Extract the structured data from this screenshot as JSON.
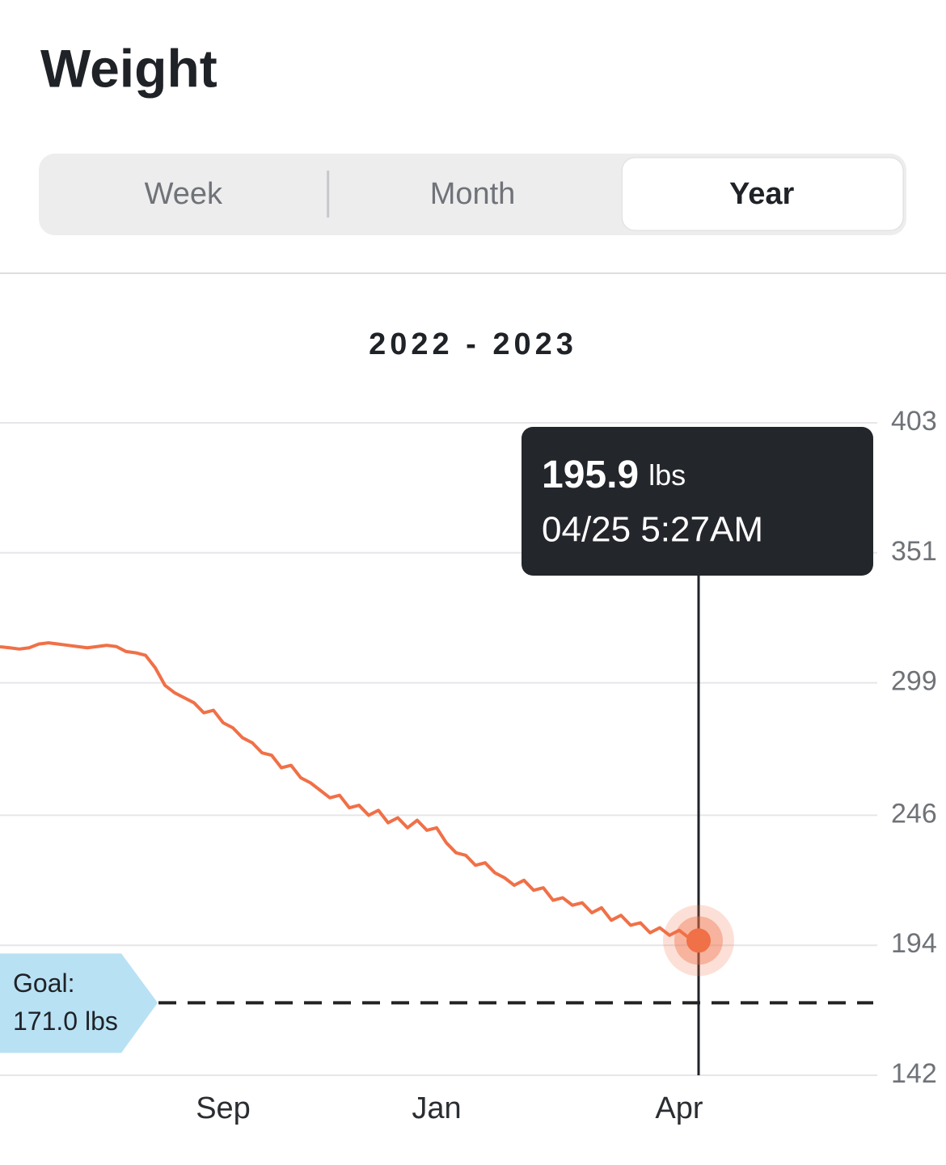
{
  "header": {
    "title": "Weight"
  },
  "tabs": {
    "items": [
      "Week",
      "Month",
      "Year"
    ],
    "selected": 2
  },
  "chart_data": {
    "type": "line",
    "title": "2022 - 2023",
    "categories": [
      null,
      null,
      null,
      null,
      null,
      null,
      null,
      null,
      null,
      null,
      null,
      null,
      null,
      null,
      null,
      null,
      null,
      null,
      null,
      null,
      null,
      null,
      null,
      "Sep",
      null,
      null,
      null,
      null,
      null,
      null,
      null,
      null,
      null,
      null,
      null,
      null,
      null,
      null,
      null,
      null,
      null,
      null,
      null,
      null,
      null,
      "Jan",
      null,
      null,
      null,
      null,
      null,
      null,
      null,
      null,
      null,
      null,
      null,
      null,
      null,
      null,
      null,
      null,
      null,
      null,
      null,
      null,
      null,
      null,
      null,
      null,
      "Apr",
      null,
      null
    ],
    "values": [
      313.4,
      313,
      312.5,
      313,
      314.5,
      315,
      314.5,
      314,
      313.5,
      313,
      313.5,
      314,
      313.5,
      311.5,
      311,
      310,
      305,
      298,
      295,
      293,
      291,
      287,
      288,
      283,
      281,
      277,
      275,
      271,
      270,
      265,
      266,
      261,
      259,
      256,
      253,
      254,
      249,
      250,
      246,
      248,
      243,
      245,
      241,
      244,
      240,
      241,
      235,
      231,
      230,
      226,
      227,
      223,
      221,
      218,
      220,
      216,
      217,
      212,
      213,
      210,
      211,
      207,
      209,
      204,
      206,
      202,
      203,
      199,
      201,
      198,
      200,
      197,
      195.9
    ],
    "color": "#f07047",
    "ylim": [
      142,
      403
    ],
    "yticks": [
      142,
      194,
      246,
      299,
      351,
      403
    ],
    "grid": true,
    "tooltip": {
      "unit": "lbs",
      "date": "04/25 5:27AM"
    },
    "goal": {
      "label": "Goal:",
      "value": 171,
      "value_label": "171.0 lbs"
    }
  }
}
